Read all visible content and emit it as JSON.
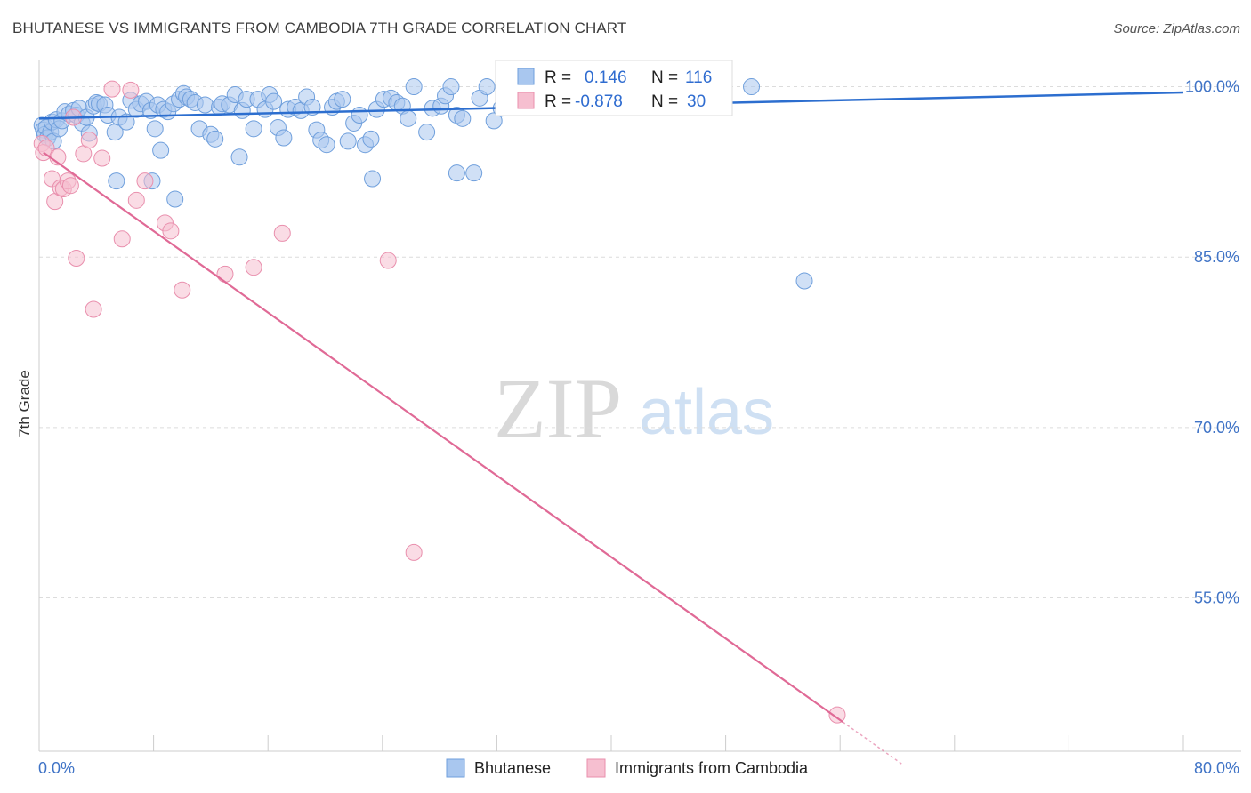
{
  "title": "BHUTANESE VS IMMIGRANTS FROM CAMBODIA 7TH GRADE CORRELATION CHART",
  "source": "Source: ZipAtlas.com",
  "watermark": {
    "zip": "ZIP",
    "atlas": "atlas"
  },
  "colors": {
    "blue_fill": "#a9c7ef",
    "blue_stroke": "#6f9fdc",
    "blue_line": "#2c6ecf",
    "pink_fill": "#f6bfd0",
    "pink_stroke": "#e98fad",
    "pink_line": "#e06a96",
    "tick_text": "#3f73c6",
    "grid": "#dcdcdc"
  },
  "legend": {
    "r_label": "R =",
    "n_label": "N =",
    "blue_r": "0.146",
    "blue_n": "116",
    "pink_r": "-0.878",
    "pink_n": "30"
  },
  "chart_data": {
    "type": "scatter",
    "title": "BHUTANESE VS IMMIGRANTS FROM CAMBODIA 7TH GRADE CORRELATION CHART",
    "xlabel": "",
    "ylabel": "7th Grade",
    "xlim": [
      0,
      80
    ],
    "ylim": [
      41.5,
      102
    ],
    "x_tick_labels": [
      "0.0%",
      "80.0%"
    ],
    "y_ticks": [
      100,
      85,
      70,
      55
    ],
    "y_tick_labels": [
      "100.0%",
      "85.0%",
      "70.0%",
      "55.0%"
    ],
    "grid": true,
    "legend_position": "top-center",
    "series": [
      {
        "name": "Bhutanese",
        "color": "#a9c7ef",
        "trend": {
          "x": [
            0,
            80
          ],
          "y": [
            97.2,
            99.5
          ]
        },
        "points": [
          [
            0.2,
            96.6
          ],
          [
            0.3,
            96.2
          ],
          [
            0.4,
            95.8
          ],
          [
            0.5,
            96.4
          ],
          [
            0.6,
            95.5
          ],
          [
            0.8,
            96.0
          ],
          [
            0.9,
            96.9
          ],
          [
            1.0,
            95.2
          ],
          [
            1.2,
            97.1
          ],
          [
            1.4,
            96.3
          ],
          [
            1.6,
            97.0
          ],
          [
            1.8,
            97.8
          ],
          [
            2.1,
            97.6
          ],
          [
            2.4,
            97.9
          ],
          [
            2.6,
            97.5
          ],
          [
            2.8,
            98.1
          ],
          [
            3.0,
            96.8
          ],
          [
            3.3,
            97.3
          ],
          [
            3.5,
            95.9
          ],
          [
            3.8,
            98.3
          ],
          [
            4.0,
            98.6
          ],
          [
            4.2,
            98.5
          ],
          [
            4.6,
            98.4
          ],
          [
            4.8,
            97.5
          ],
          [
            5.3,
            96.0
          ],
          [
            5.6,
            97.3
          ],
          [
            6.1,
            96.9
          ],
          [
            6.4,
            98.8
          ],
          [
            6.8,
            98.0
          ],
          [
            7.1,
            98.5
          ],
          [
            7.5,
            98.7
          ],
          [
            7.8,
            97.9
          ],
          [
            8.1,
            96.3
          ],
          [
            8.3,
            98.4
          ],
          [
            8.7,
            98.0
          ],
          [
            9.0,
            97.8
          ],
          [
            9.4,
            98.5
          ],
          [
            9.8,
            98.9
          ],
          [
            10.1,
            99.4
          ],
          [
            10.3,
            99.1
          ],
          [
            10.6,
            98.9
          ],
          [
            10.9,
            98.6
          ],
          [
            11.2,
            96.3
          ],
          [
            11.6,
            98.4
          ],
          [
            12.0,
            95.8
          ],
          [
            12.3,
            95.4
          ],
          [
            12.6,
            98.2
          ],
          [
            12.8,
            98.5
          ],
          [
            13.3,
            98.4
          ],
          [
            13.7,
            99.3
          ],
          [
            14.2,
            97.9
          ],
          [
            14.5,
            98.9
          ],
          [
            15.0,
            96.3
          ],
          [
            15.3,
            98.9
          ],
          [
            15.8,
            98.0
          ],
          [
            16.1,
            99.3
          ],
          [
            16.4,
            98.7
          ],
          [
            16.7,
            96.4
          ],
          [
            17.1,
            95.5
          ],
          [
            17.4,
            98.0
          ],
          [
            17.9,
            98.2
          ],
          [
            18.3,
            97.9
          ],
          [
            18.7,
            99.1
          ],
          [
            19.1,
            98.2
          ],
          [
            19.4,
            96.2
          ],
          [
            19.7,
            95.3
          ],
          [
            20.1,
            94.9
          ],
          [
            20.5,
            98.2
          ],
          [
            20.8,
            98.7
          ],
          [
            21.2,
            98.9
          ],
          [
            21.6,
            95.2
          ],
          [
            22.0,
            96.8
          ],
          [
            22.4,
            97.5
          ],
          [
            22.8,
            94.9
          ],
          [
            23.2,
            95.4
          ],
          [
            23.6,
            98.0
          ],
          [
            24.1,
            98.9
          ],
          [
            24.6,
            99.0
          ],
          [
            25.0,
            98.6
          ],
          [
            25.4,
            98.3
          ],
          [
            25.8,
            97.2
          ],
          [
            26.2,
            100.0
          ],
          [
            27.1,
            96.0
          ],
          [
            27.5,
            98.1
          ],
          [
            28.1,
            98.3
          ],
          [
            28.4,
            99.2
          ],
          [
            28.8,
            100.0
          ],
          [
            29.2,
            97.5
          ],
          [
            29.6,
            97.2
          ],
          [
            30.4,
            92.4
          ],
          [
            30.8,
            99.0
          ],
          [
            31.3,
            100.0
          ],
          [
            31.8,
            97.0
          ],
          [
            32.3,
            98.1
          ],
          [
            32.8,
            99.1
          ],
          [
            33.2,
            100.0
          ],
          [
            33.7,
            98.5
          ],
          [
            34.2,
            99.6
          ],
          [
            34.8,
            98.9
          ],
          [
            35.5,
            99.4
          ],
          [
            36.2,
            98.8
          ],
          [
            36.9,
            99.9
          ],
          [
            37.7,
            99.3
          ],
          [
            38.5,
            100.0
          ],
          [
            39.3,
            99.5
          ],
          [
            40.2,
            99.8
          ],
          [
            43.0,
            100.0
          ],
          [
            44.5,
            99.7
          ],
          [
            47.5,
            100.0
          ],
          [
            49.8,
            100.0
          ],
          [
            53.5,
            82.9
          ],
          [
            9.5,
            90.1
          ],
          [
            8.5,
            94.4
          ],
          [
            5.4,
            91.7
          ],
          [
            7.9,
            91.7
          ],
          [
            14.0,
            93.8
          ],
          [
            23.3,
            91.9
          ],
          [
            29.2,
            92.4
          ]
        ]
      },
      {
        "name": "Immigrants from Cambodia",
        "color": "#f6bfd0",
        "trend": {
          "x": [
            0.3,
            60.4
          ],
          "y": [
            94.2,
            40.3
          ]
        },
        "points": [
          [
            0.2,
            95.0
          ],
          [
            0.3,
            94.2
          ],
          [
            0.5,
            94.6
          ],
          [
            0.9,
            91.9
          ],
          [
            1.1,
            89.9
          ],
          [
            1.3,
            93.8
          ],
          [
            1.5,
            91.1
          ],
          [
            1.7,
            91.0
          ],
          [
            2.0,
            91.7
          ],
          [
            2.2,
            91.3
          ],
          [
            2.4,
            97.3
          ],
          [
            2.6,
            84.9
          ],
          [
            3.1,
            94.1
          ],
          [
            3.5,
            95.3
          ],
          [
            3.8,
            80.4
          ],
          [
            4.4,
            93.7
          ],
          [
            5.1,
            99.8
          ],
          [
            5.8,
            86.6
          ],
          [
            6.4,
            99.7
          ],
          [
            6.8,
            90.0
          ],
          [
            7.4,
            91.7
          ],
          [
            8.8,
            88.0
          ],
          [
            9.2,
            87.3
          ],
          [
            10.0,
            82.1
          ],
          [
            13.0,
            83.5
          ],
          [
            15.0,
            84.1
          ],
          [
            17.0,
            87.1
          ],
          [
            24.4,
            84.7
          ],
          [
            26.2,
            59.0
          ],
          [
            55.8,
            44.7
          ]
        ]
      }
    ]
  },
  "bottom_legend": {
    "blue_label": "Bhutanese",
    "pink_label": "Immigrants from Cambodia"
  }
}
